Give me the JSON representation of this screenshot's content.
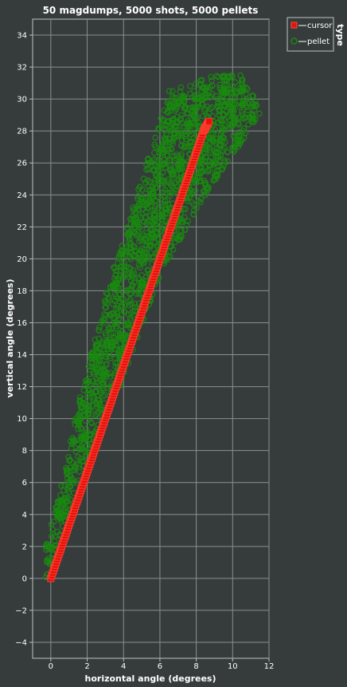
{
  "chart_data": {
    "type": "scatter",
    "title": "50 magdumps, 5000 shots, 5000 pellets",
    "xlabel": "horizontal angle (degrees)",
    "ylabel": "vertical angle (degrees)",
    "xlim": [
      -1,
      12
    ],
    "ylim": [
      -5,
      35
    ],
    "x_ticks": [
      0,
      2,
      4,
      6,
      8,
      10,
      12
    ],
    "y_ticks": [
      -4,
      -2,
      0,
      2,
      4,
      6,
      8,
      10,
      12,
      14,
      16,
      18,
      20,
      22,
      24,
      26,
      28,
      30,
      32,
      34
    ],
    "grid": true,
    "legend": {
      "title": "type",
      "placement": "top-right",
      "entries": [
        {
          "label": "cursor",
          "color": "#e3120b",
          "marker": "square"
        },
        {
          "label": "pellet",
          "color": "#1a8a10",
          "marker": "circle"
        }
      ]
    },
    "series": [
      {
        "name": "cursor",
        "color": "#e3120b",
        "marker": "square",
        "points": [
          [
            0,
            0
          ],
          [
            0.6,
            2
          ],
          [
            1.2,
            4
          ],
          [
            1.8,
            6
          ],
          [
            2.4,
            8
          ],
          [
            3.0,
            10
          ],
          [
            3.6,
            12
          ],
          [
            4.2,
            14
          ],
          [
            4.8,
            16
          ],
          [
            5.4,
            18
          ],
          [
            6.0,
            20
          ],
          [
            6.6,
            22
          ],
          [
            7.2,
            24
          ],
          [
            7.8,
            26
          ],
          [
            8.4,
            28
          ],
          [
            8.7,
            28.6
          ]
        ]
      },
      {
        "name": "pellet",
        "color": "#1a8a10",
        "marker": "circle",
        "envelope": [
          [
            -0.3,
            -0.2
          ],
          [
            2.1,
            8
          ],
          [
            3.8,
            12
          ],
          [
            6.0,
            19
          ],
          [
            8.5,
            24
          ],
          [
            11.5,
            29
          ],
          [
            11.3,
            30
          ],
          [
            10.5,
            31.5
          ],
          [
            9.0,
            31.5
          ],
          [
            6.5,
            30.5
          ],
          [
            5.0,
            25
          ],
          [
            3.3,
            19
          ],
          [
            1.7,
            12
          ],
          [
            0.5,
            5.5
          ],
          [
            -0.3,
            2
          ]
        ]
      }
    ]
  }
}
